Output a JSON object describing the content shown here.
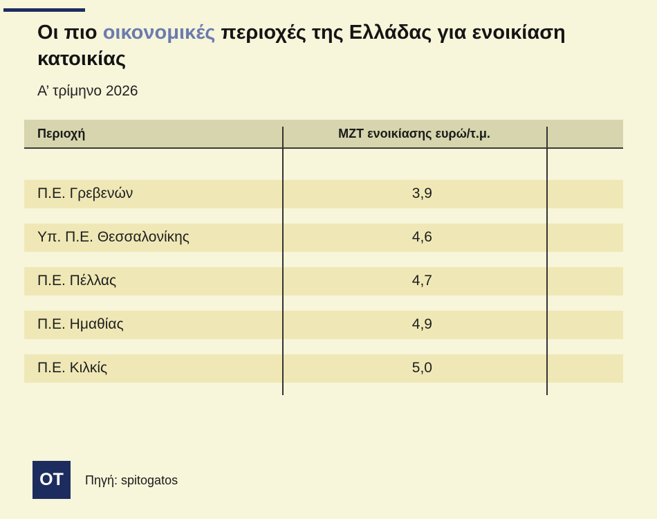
{
  "header": {
    "title_part1": "Οι πιο ",
    "title_accent": "οικονομικές",
    "title_part2": " περιοχές της Ελλάδας για ενοικίαση κατοικίας",
    "subtitle": "Α’ τρίμηνο 2026",
    "accent_color": "#6b7bae"
  },
  "chart_data": {
    "type": "table",
    "columns": [
      "Περιοχή",
      "ΜΖΤ ενοικίασης ευρώ/τ.μ."
    ],
    "rows": [
      {
        "region": "Π.Ε. Γρεβενών",
        "value": "3,9"
      },
      {
        "region": "Υπ. Π.Ε. Θεσσαλονίκης",
        "value": "4,6"
      },
      {
        "region": "Π.Ε. Πέλλας",
        "value": "4,7"
      },
      {
        "region": "Π.Ε. Ημαθίας",
        "value": "4,9"
      },
      {
        "region": "Π.Ε. Κιλκίς",
        "value": "5,0"
      }
    ],
    "values": [
      3.9,
      4.6,
      4.7,
      4.9,
      5.0
    ]
  },
  "footer": {
    "logo_text": "ΟΤ",
    "logo_color": "#1d2c5e",
    "source": "Πηγή: spitogatos"
  }
}
